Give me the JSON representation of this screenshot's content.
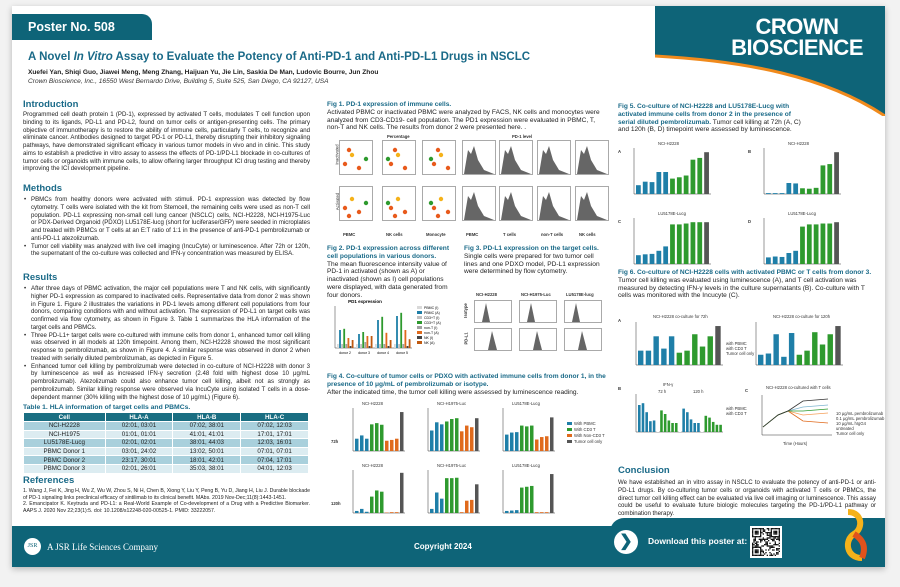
{
  "header": {
    "poster_number": "Poster No. 508",
    "logo": "CROWN BIOSCIENCE",
    "title_prefix": "A Novel ",
    "title_italic": "In Vitro",
    "title_suffix": " Assay to Evaluate the Potency of Anti-PD-1 and Anti-PD-L1 Drugs in NSCLC",
    "authors": "Xuefei Yan, Shiqi Guo, Jiawei Meng, Meng Zhang, Haijuan Yu, Jie Lin, Saskia De Man, Ludovic Bourre, Jun Zhou",
    "affiliation": "Crown Bioscience, Inc., 16550 West Bernardo Drive, Building 5, Suite 525, San Diego, CA 92127, USA"
  },
  "introduction": {
    "heading": "Introduction",
    "text": "Programmed cell death protein 1 (PD-1), expressed by activated T cells, modulates T cell function upon binding to its ligands, PD-L1 and PD-L2, found on tumor cells or antigen-presenting cells. The primary objective of immunotherapy is to restore the ability of immune cells, particularly T cells, to recognize and eliminate cancer. Antibodies designed to target PD-1 or PD-L1, thereby disrupting their inhibitory signaling pathways, have demonstrated significant efficacy in various tumor models in vivo and in clinic. This study aims to establish a predictive in vitro assay to assess the effects of PD-1/PD-L1 blockade in co-cultures of tumor cells or organoids with immune cells, to allow offering larger throughput ICI drug testing and thereby improving the ICI development pipeline."
  },
  "methods": {
    "heading": "Methods",
    "items": [
      "PBMCs from healthy donors were activated with stimuli. PD-1 expression was detected by flow cytometry. T cells were isolated with the kit from Stemcell, the remaining cells were used as non-T cell population. PD-L1 expressing non-small cell lung cancer (NSCLC) cells, NCI-H2228, NCI-H1975-Luc or PDX-Derived Organoid (PDXO) LU5178E-lucg (short for luciferase/GFP) were seeded in microplates and treated with PBMCs or T cells at an E:T ratio of 1:1 in the presence of anti-PD-1 pembrolizumab or anti-PD-L1 atezolizumab.",
      "Tumor cell viability was analyzed with live cell imaging (IncuCyte) or luminescence. After 72h or 120h, the supernatant of the co-culture was collected and IFN-γ concentration was measured by ELISA."
    ]
  },
  "results": {
    "heading": "Results",
    "items": [
      "After three days of PBMC activation, the major cell populations were T and NK cells, with significantly higher PD-1 expression as compared to inactivated cells. Representative data from donor 2 was shown in Figure 1. Figure 2 illustrates the variations in PD-1 levels among different cell populations from four donors, comparing conditions with and without activation. The expression of PD-L1 on target cells was confirmed via flow cytometry, as shown in Figure 3. Table 1 summarizes the HLA information of the target cells and PBMCs.",
      "Three PD-L1+ target cells were co-cultured with immune cells from donor 1, enhanced tumor cell killing was observed in all models at 120h timepoint. Among them, NCI-H2228 showed the most significant response to pembrolizumab, as shown in Figure 4. A similar response was observed in donor 2 when treated with serially diluted pembrolizumab, as depicted in Figure 5.",
      "Enhanced tumor cell killing by pembrolizumab were detected in co-culture of NCI-H2228 with donor 3 by luminescence as well as increased IFN-γ secretion (2.48 fold with highest dose 10 μg/mL pembrolizumab). Atezolizumab could also enhance tumor cell killing, albeit not as strongly as pembrolizumab. Similar killing response were observed via IncuCyte using isolated T cells in a dose-dependent manner (30% killing with the highest dose of 10 μg/mL) (Figure 6)."
    ]
  },
  "table": {
    "title": "Table 1. HLA information of target cells and PBMCs.",
    "headers": [
      "Cell",
      "HLA-A",
      "HLA-B",
      "HLA-C"
    ],
    "rows": [
      [
        "NCI-H2228",
        "02:01, 03:01",
        "07:02, 38:01",
        "07:02, 12:03"
      ],
      [
        "NCI-H1975",
        "01:01, 01:01",
        "41:01, 41:01",
        "17:01, 17:01"
      ],
      [
        "LU5178E-Lucg",
        "02:01, 02:01",
        "38:01, 44:03",
        "12:03, 16:01"
      ],
      [
        "PBMC Donor 1",
        "03:01, 24:02",
        "13:02, 50:01",
        "07:01, 07:01"
      ],
      [
        "PBMC Donor 2",
        "23:17, 30:01",
        "18:01, 42:01",
        "07:04, 17:01"
      ],
      [
        "PBMC Donor 3",
        "02:01, 26:01",
        "35:03, 38:01",
        "04:01, 12:03"
      ]
    ]
  },
  "references": {
    "heading": "References",
    "items": [
      "1. Wang J, Fei K, Jing H, Wu Z, Wu W, Zhou S, Ni H, Chen B, Xiong Y, Liu Y, Peng B, Yu D, Jiang H, Liu J. Durable blockade of PD-1 signaling links preclinical efficacy of sintilimab to its clinical benefit. MAbs. 2019 Nov-Dec;11(8):1443-1451.",
      "2. Emancipator K. Keytruda and PD-L1: a Real-World Example of Co-development of a Drug with a Predictive Biomarker. AAPS J. 2020 Nov 22;23(1):5. doi: 10.1208/s12248-020-00525-1. PMID: 33222057."
    ]
  },
  "fig1": {
    "title": "Fig 1. PD-1 expression of immune cells.",
    "desc": "Activated PBMC or inactivated PBMC were analyzed by FACS, NK cells and monocytes were analyzed from CD3-CD19- cell population. The PD1 expression were evaluated in PBMC, T, non-T and NK cells. The results from donor 2 were presented here. .",
    "group_left": "Percentage",
    "group_right": "PD-1 level",
    "rows": [
      "Inactivated",
      "Activated"
    ],
    "cols": [
      "PBMC",
      "NK cells",
      "Monocyte",
      "PBMC",
      "T cells",
      "non-T cells",
      "NK cells"
    ]
  },
  "fig2": {
    "title": "Fig 2. PD-1 expression across different cell populations in various donors.",
    "desc": "The mean fluorescence intensity value of PD-1 in activated (shown as A) or inactivated (shown as I) cell populations were displayed, with data generated from four donors.",
    "chart_title": "PD1 expression",
    "legend": [
      "PBMC (I)",
      "PBMC (A)",
      "CD3+T (I)",
      "CD3+T (A)",
      "non-T (I)",
      "non-T (A)",
      "NK (I)",
      "NK (A)"
    ],
    "categories": [
      "donor 2",
      "donor 3",
      "donor 4",
      "donor 5"
    ],
    "colors": [
      "#d9d9d9",
      "#1f7fa8",
      "#bfbfbf",
      "#2e9a2e",
      "#a0a0a0",
      "#e06a1c",
      "#444444",
      "#c05a10"
    ]
  },
  "fig3": {
    "title": "Fig 3. PD-L1 expression on the target cells.",
    "desc": "Single cells were prepared for two tumor cell lines and one PDXO model, PD-L1 expression were determined by flow cytometry.",
    "cols": [
      "NCI-H2228",
      "NCI-H1975-Luc",
      "LU5178E-lucg"
    ],
    "rows": [
      "Isotype",
      "PD-L1"
    ]
  },
  "fig4": {
    "title": "Fig 4. Co-culture of tumor cells or PDXO with activated immune cells from donor 1, in the presence of 10 μg/mL of pembrolizumab or isotype.",
    "desc": "After the indicated time, the tumor cell killing were assessed by luminescence reading.",
    "rows": [
      "72h",
      "120h"
    ],
    "cols": [
      "NCI-H2228",
      "NCI-H1975-Luc",
      "LU5178E-Lucg"
    ],
    "legend": [
      "With PBMC",
      "With CD3 T",
      "With Non-CD3 T",
      "Tumor cell only"
    ]
  },
  "fig5": {
    "title": "Fig 5. Co-culture of NCI-H2228 and LU5178E-Lucg with activated immune cells from donor 2 in the presence of serial diluted pembrolizumab.",
    "desc": " Tumor cell killing at 72h (A, C) and 120h (B, D) timepoint were assessed by luminescence.",
    "panels": [
      "A",
      "B",
      "C",
      "D"
    ],
    "panel_titles": [
      "NCI-H2228",
      "NCI-H2228",
      "LU5178E-Lucg",
      "LU5178E-Lucg"
    ]
  },
  "fig6": {
    "title": "Fig 6. Co-culture of NCI-H2228 cells with activated PBMC or T cells from donor 3.",
    "desc": " Tumor cell killing was evaluated using luminescence (A), and T cell activation was measured by detecting IFN-γ levels in the culture supernatants (B). Co-culture with T cells was monitored with the Incucyte (C).",
    "panels": [
      "A",
      "B",
      "C"
    ],
    "a1_title": "NCI-H2228 co-culture for 72h",
    "a2_title": "NCI-H2228 co-culture for 120h",
    "b_title": "IFN-γ",
    "b_groups": [
      "72 h",
      "120 h"
    ],
    "c_title": "NCI-H2228 co-cultured with T cells",
    "c_xlabel": "Time (Hours)",
    "legend_ab": [
      "with PBMC",
      "with CD3 T",
      "Tumor cell only"
    ],
    "legend_c": [
      "10 μg/mL pembrolizumab",
      "0.1 μg/mL pembrolizumab",
      "10 μg/mL hIgG4",
      "untreated",
      "Tumor cell only"
    ]
  },
  "conclusion": {
    "heading": "Conclusion",
    "text": "We have established an in vitro assay in NSCLC to evaluate the potency of anti-PD-1 or anti-PD-L1 drugs. By co-culturing tumor cells or organoids with activated T cells or PBMCs, the direct tumor cell killing effect can be evaluated via live cell imaging or luminescence. This assay could be useful to evaluate future biologic molecules targeting the PD-1/PD-L1 pathway or combination therapy."
  },
  "footer": {
    "company": "A JSR Life Sciences Company",
    "copyright": "Copyright 2024",
    "download": "Download this poster at:"
  },
  "colors": {
    "brand_teal": "#0e6478",
    "heading": "#1a6a88",
    "accent_orange": "#f08a1c",
    "blue": "#1f7fa8",
    "green": "#2e9a2e",
    "orange": "#e06a1c",
    "grey": "#555555"
  }
}
